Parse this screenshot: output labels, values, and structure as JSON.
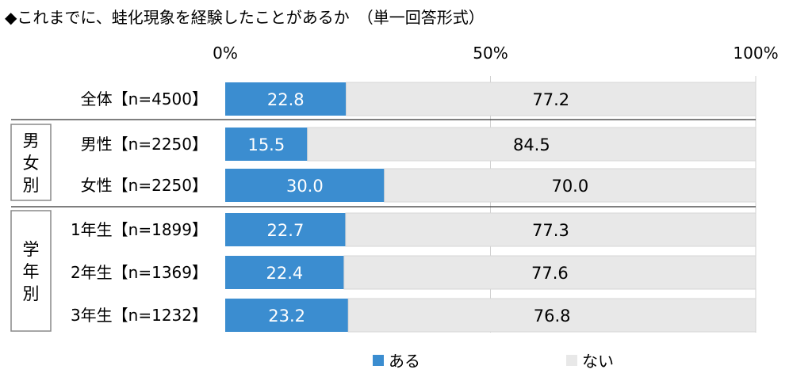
{
  "title": "◆これまでに、蛙化現象を経験したことがあるか　（単一回答形式）",
  "chart_data": {
    "type": "bar",
    "orientation": "horizontal",
    "stacked": true,
    "percent": true,
    "title": "◆これまでに、蛙化現象を経験したことがあるか　（単一回答形式）",
    "x_ticks": [
      "0%",
      "50%",
      "100%"
    ],
    "xlim": [
      0,
      100
    ],
    "categories": [
      "全体【n=4500】",
      "男性【n=2250】",
      "女性【n=2250】",
      "1年生【n=1899】",
      "2年生【n=1369】",
      "3年生【n=1232】"
    ],
    "groups": [
      {
        "label": "男女別",
        "categories": [
          "男性【n=2250】",
          "女性【n=2250】"
        ]
      },
      {
        "label": "学年別",
        "categories": [
          "1年生【n=1899】",
          "2年生【n=1369】",
          "3年生【n=1232】"
        ]
      }
    ],
    "series": [
      {
        "name": "ある",
        "color": "#3b8dd0",
        "values": [
          22.8,
          15.5,
          30.0,
          22.7,
          22.4,
          23.2
        ],
        "labels": [
          "22.8",
          "15.5",
          "30.0",
          "22.7",
          "22.4",
          "23.2"
        ]
      },
      {
        "name": "ない",
        "color": "#e8e8e8",
        "values": [
          77.2,
          84.5,
          70.0,
          77.3,
          77.6,
          76.8
        ],
        "labels": [
          "77.2",
          "84.5",
          "70.0",
          "77.3",
          "77.6",
          "76.8"
        ]
      }
    ],
    "grid": true,
    "legend_position": "bottom"
  }
}
